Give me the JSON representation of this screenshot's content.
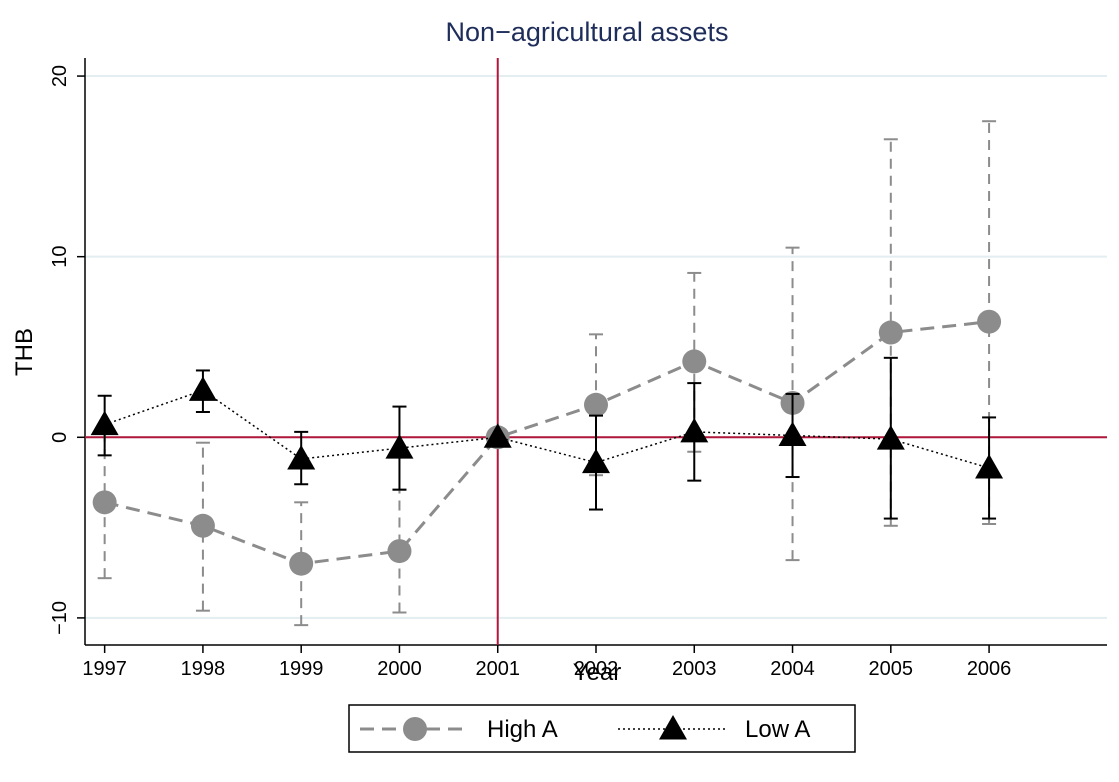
{
  "chart_data": {
    "type": "line",
    "title": "Non−agricultural assets",
    "x_label": "Year",
    "y_label": "THB",
    "x": [
      1997,
      1998,
      1999,
      2000,
      2001,
      2002,
      2003,
      2004,
      2005,
      2006
    ],
    "xlim": [
      1996.8,
      2007.2
    ],
    "xticks": [
      1997,
      1998,
      1999,
      2000,
      2001,
      2002,
      2003,
      2004,
      2005,
      2006
    ],
    "ylim": [
      -11.5,
      21
    ],
    "yticks": [
      {
        "value": -10,
        "label": "−10"
      },
      0,
      10,
      20
    ],
    "grid": true,
    "legend": "bottom",
    "reference_lines": {
      "x": 2001,
      "y": 0,
      "color": "#b0173a"
    },
    "series": [
      {
        "name": "High A",
        "color": "#8c8c8c",
        "dash": "dashed",
        "marker": "circle",
        "values": [
          -3.6,
          -4.9,
          -7.0,
          -6.3,
          0,
          1.8,
          4.2,
          1.9,
          5.8,
          6.4
        ],
        "lower": [
          -7.8,
          -9.6,
          -10.4,
          -9.7,
          0,
          -2.1,
          -0.8,
          -6.8,
          -4.9,
          -4.8
        ],
        "upper": [
          0.6,
          -0.3,
          -3.6,
          -2.9,
          0,
          5.7,
          9.1,
          10.5,
          16.5,
          17.5
        ]
      },
      {
        "name": "Low A",
        "color": "#000000",
        "dash": "dotted",
        "marker": "triangle",
        "values": [
          0.7,
          2.6,
          -1.2,
          -0.6,
          0,
          -1.4,
          0.3,
          0.1,
          -0.1,
          -1.7
        ],
        "lower": [
          -1.0,
          1.4,
          -2.6,
          -2.9,
          0,
          -4.0,
          -2.4,
          -2.2,
          -4.5,
          -4.5
        ],
        "upper": [
          2.3,
          3.7,
          0.3,
          1.7,
          0,
          1.2,
          3.0,
          2.4,
          4.4,
          1.1
        ]
      }
    ]
  }
}
